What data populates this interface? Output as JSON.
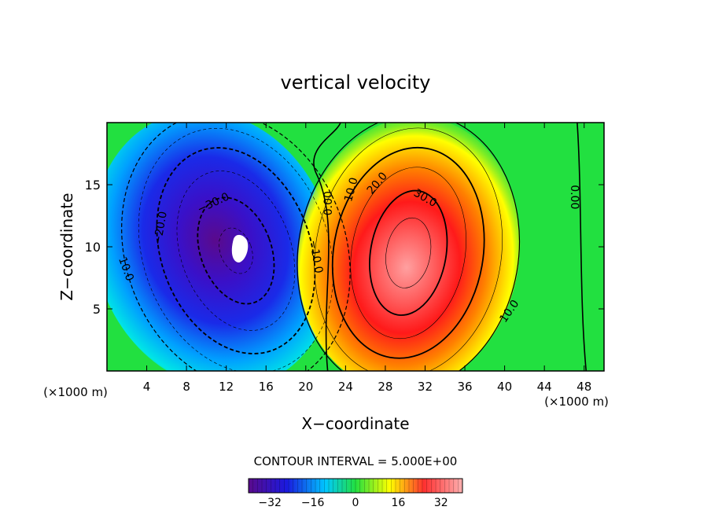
{
  "chart_data": {
    "type": "heatmap",
    "title": "vertical velocity",
    "xlabel": "X−coordinate",
    "ylabel": "Z−coordinate",
    "x_unit_left": "(×1000 m)",
    "x_unit_right": "(×1000 m)",
    "xlim": [
      0,
      50
    ],
    "ylim": [
      0,
      20
    ],
    "x_ticks": [
      4,
      8,
      12,
      16,
      20,
      24,
      28,
      32,
      36,
      40,
      44,
      48
    ],
    "y_ticks": [
      5,
      10,
      15
    ],
    "contour_interval_text": "CONTOUR INTERVAL = 5.000E+00",
    "contour_interval": 5,
    "contour_labels": [
      {
        "text": "10.0",
        "x": 1.9,
        "z": 8.2,
        "angle": 70
      },
      {
        "text": "−20.0",
        "x": 5.4,
        "z": 11.5,
        "angle": -80
      },
      {
        "text": "−30.0",
        "x": 10.7,
        "z": 13.5,
        "angle": -25
      },
      {
        "text": "−10.0",
        "x": 21.0,
        "z": 9.2,
        "angle": 80
      },
      {
        "text": "0.00",
        "x": 22.3,
        "z": 13.5,
        "angle": -90
      },
      {
        "text": "10.0",
        "x": 24.6,
        "z": 14.6,
        "angle": -75
      },
      {
        "text": "20.0",
        "x": 27.2,
        "z": 15.1,
        "angle": -50
      },
      {
        "text": "30.0",
        "x": 32.0,
        "z": 13.9,
        "angle": 30
      },
      {
        "text": "10.0",
        "x": 40.5,
        "z": 4.8,
        "angle": -55
      },
      {
        "text": "0.00",
        "x": 47.0,
        "z": 14.0,
        "angle": 90
      }
    ],
    "colorbar": {
      "vmin": -40,
      "vmax": 40,
      "ticks": [
        -32,
        -16,
        0,
        16,
        32
      ],
      "tick_labels": [
        "−32",
        "−16",
        "0",
        "16",
        "32"
      ]
    },
    "field": {
      "cells_x": 10,
      "cells_z": 4,
      "downdraft_center": [
        13.6,
        10.0
      ],
      "downdraft_peak": -40,
      "updraft_center": [
        30.0,
        9.0
      ],
      "updraft_peak": 40
    },
    "colors": {
      "neg_deep": "#5a0a8c",
      "neg_mid": "#1a1ae0",
      "neg_light": "#00e6ff",
      "zero": "#22e040",
      "pos_light": "#ffff00",
      "pos_mid": "#ff2020",
      "pos_deep": "#ffa0a0"
    }
  }
}
